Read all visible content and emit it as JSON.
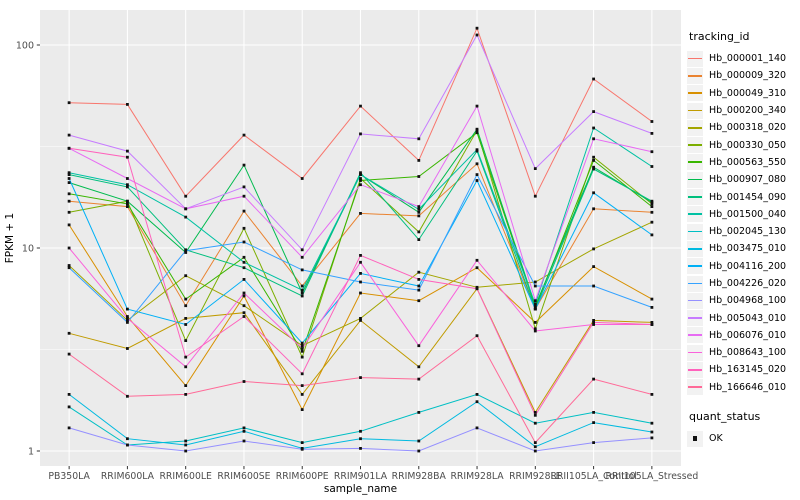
{
  "chart_data": {
    "type": "line",
    "title": "",
    "xlabel": "sample_name",
    "ylabel": "FPKM + 1",
    "yscale": "log10",
    "ylim": [
      1,
      140
    ],
    "yticks": [
      1,
      10,
      100
    ],
    "ytick_labels": [
      "1",
      "10",
      "100"
    ],
    "grid": true,
    "legend_position": "right",
    "categories": [
      "PB350LA",
      "RRIM600LA",
      "RRIM600LE",
      "RRIM600SE",
      "RRIM600PE",
      "RRIM901LA",
      "RRIM928BA",
      "RRIM928LA",
      "RRIM928LE",
      "RRII105LA_Control",
      "RRII105LA_Stressed"
    ],
    "series": [
      {
        "name": "Hb_000001_140",
        "color": "#F8766D",
        "values": [
          52,
          51,
          18,
          36,
          22,
          50,
          27,
          121,
          18,
          68,
          42
        ]
      },
      {
        "name": "Hb_000009_320",
        "color": "#EA8331",
        "values": [
          17,
          16,
          5.2,
          15.2,
          6.5,
          14.8,
          14.4,
          26,
          5.0,
          15.6,
          15.0
        ]
      },
      {
        "name": "Hb_000049_310",
        "color": "#D89000",
        "values": [
          13,
          4.6,
          2.1,
          5.8,
          1.6,
          6.0,
          5.5,
          8.0,
          4.3,
          8.1,
          5.6
        ]
      },
      {
        "name": "Hb_000200_340",
        "color": "#C09B00",
        "values": [
          3.8,
          3.2,
          4.5,
          4.8,
          1.9,
          4.4,
          2.6,
          6.3,
          1.55,
          4.4,
          4.3
        ]
      },
      {
        "name": "Hb_000318_020",
        "color": "#A3A500",
        "values": [
          8.2,
          4.4,
          7.3,
          5.2,
          3.3,
          4.5,
          7.6,
          6.4,
          6.8,
          9.9,
          13.4
        ]
      },
      {
        "name": "Hb_000330_050",
        "color": "#7CAE00",
        "values": [
          15,
          17,
          3.5,
          12.5,
          2.9,
          22,
          12,
          38,
          4.0,
          28,
          16.5
        ]
      },
      {
        "name": "Hb_000563_550",
        "color": "#39B600",
        "values": [
          18.5,
          16.5,
          5.6,
          9.0,
          3.1,
          21.5,
          22.5,
          37,
          5.1,
          27,
          16.0
        ]
      },
      {
        "name": "Hb_000907_080",
        "color": "#00BB4E",
        "values": [
          21,
          17,
          9.5,
          25.6,
          6.0,
          23,
          15,
          38.5,
          5.2,
          25,
          16.8
        ]
      },
      {
        "name": "Hb_001454_090",
        "color": "#00BF7D",
        "values": [
          23,
          20,
          9.8,
          8.0,
          5.8,
          23.5,
          11,
          30,
          5.0,
          24.5,
          17
        ]
      },
      {
        "name": "Hb_001500_040",
        "color": "#00C1A3",
        "values": [
          23.5,
          20.5,
          14.2,
          8.5,
          6.2,
          23,
          15.5,
          30.5,
          5.3,
          39,
          25.2
        ]
      },
      {
        "name": "Hb_002045_130",
        "color": "#00BFC4",
        "values": [
          1.65,
          1.07,
          1.12,
          1.3,
          1.1,
          1.25,
          1.55,
          1.9,
          1.37,
          1.55,
          1.37
        ]
      },
      {
        "name": "Hb_003475_010",
        "color": "#00BAE0",
        "values": [
          1.9,
          1.15,
          1.07,
          1.25,
          1.03,
          1.15,
          1.12,
          1.75,
          1.05,
          1.38,
          1.24
        ]
      },
      {
        "name": "Hb_004116_200",
        "color": "#00B0F6",
        "values": [
          22,
          5.0,
          4.2,
          7.0,
          3.4,
          7.5,
          6.5,
          21.5,
          5.0,
          18.7,
          11.6
        ]
      },
      {
        "name": "Hb_004226_020",
        "color": "#35A2FF",
        "values": [
          8.0,
          4.3,
          9.7,
          10.7,
          7.8,
          6.8,
          6.2,
          23,
          6.5,
          6.5,
          5.1
        ]
      },
      {
        "name": "Hb_004968_100",
        "color": "#9590FF",
        "values": [
          1.3,
          1.07,
          1.0,
          1.12,
          1.02,
          1.03,
          1.0,
          1.3,
          1.0,
          1.1,
          1.16
        ]
      },
      {
        "name": "Hb_005043_010",
        "color": "#C77CFF",
        "values": [
          36,
          30,
          15.6,
          20,
          9.8,
          36.5,
          34.5,
          112,
          24.6,
          47,
          36.7
        ]
      },
      {
        "name": "Hb_006076_010",
        "color": "#E76BF3",
        "values": [
          31,
          22,
          15.6,
          18,
          9.0,
          20.5,
          16,
          50,
          5.5,
          34.5,
          29.8
        ]
      },
      {
        "name": "Hb_008643_100",
        "color": "#FA62DB",
        "values": [
          10,
          4.5,
          2.6,
          6.0,
          3.2,
          8.5,
          3.3,
          8.7,
          3.9,
          4.2,
          4.2
        ]
      },
      {
        "name": "Hb_163145_020",
        "color": "#FF62BC",
        "values": [
          31,
          28,
          2.9,
          4.6,
          2.4,
          9.2,
          7.0,
          6.3,
          1.5,
          4.3,
          4.2
        ]
      },
      {
        "name": "Hb_166646_010",
        "color": "#FF6A98",
        "values": [
          3.0,
          1.86,
          1.9,
          2.2,
          2.1,
          2.3,
          2.26,
          3.7,
          1.1,
          2.26,
          1.9
        ]
      }
    ],
    "legend_title": "tracking_id",
    "legend2_title": "quant_status",
    "legend2_items": [
      {
        "label": "OK",
        "marker": "black-square"
      }
    ],
    "colors": {
      "panel_bg": "#EBEBEB",
      "grid": "#FFFFFF",
      "tick_label": "#4D4D4D",
      "axis_title": "#000000",
      "tick_mark": "#333333",
      "marker": "#111111",
      "legend_key_bg": "#F2F2F2"
    }
  }
}
